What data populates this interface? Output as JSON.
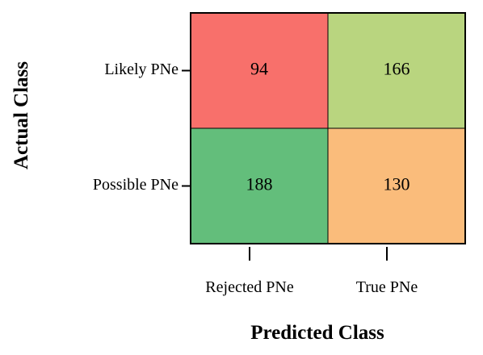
{
  "chart_data": {
    "type": "heatmap",
    "title": "",
    "xlabel": "Predicted Class",
    "ylabel": "Actual Class",
    "x_categories": [
      "Rejected PNe",
      "True PNe"
    ],
    "y_categories": [
      "Likely PNe",
      "Possible PNe"
    ],
    "values": [
      [
        94,
        166
      ],
      [
        188,
        130
      ]
    ],
    "cell_colors": [
      [
        "#f8706b",
        "#b9d57f"
      ],
      [
        "#63be7b",
        "#fabc7b"
      ]
    ]
  }
}
